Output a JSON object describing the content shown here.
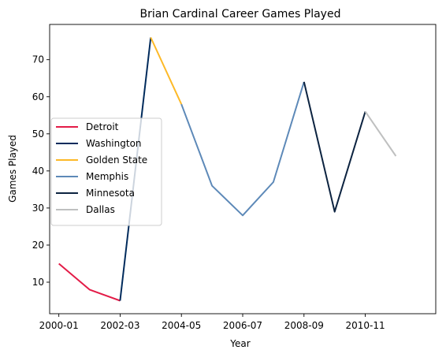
{
  "chart_data": {
    "type": "line",
    "title": "Brian Cardinal Career Games Played",
    "xlabel": "Year",
    "ylabel": "Games Played",
    "xlim": [
      -0.3,
      12.3
    ],
    "ylim": [
      1.5,
      79.5
    ],
    "x_ticks": [
      {
        "pos": 0,
        "label": "2000-01"
      },
      {
        "pos": 2,
        "label": "2002-03"
      },
      {
        "pos": 4,
        "label": "2004-05"
      },
      {
        "pos": 6,
        "label": "2006-07"
      },
      {
        "pos": 8,
        "label": "2008-09"
      },
      {
        "pos": 10,
        "label": "2010-11"
      }
    ],
    "y_ticks": [
      10,
      20,
      30,
      40,
      50,
      60,
      70
    ],
    "legend_position": "center-left",
    "series": [
      {
        "name": "Detroit",
        "color": "#e31b47",
        "x": [
          0,
          1,
          2
        ],
        "y": [
          15,
          8,
          5
        ]
      },
      {
        "name": "Washington",
        "color": "#002b5c",
        "x": [
          2,
          3
        ],
        "y": [
          5,
          76
        ]
      },
      {
        "name": "Golden State",
        "color": "#fdb927",
        "x": [
          3,
          4
        ],
        "y": [
          76,
          58
        ]
      },
      {
        "name": "Memphis",
        "color": "#5d89b8",
        "x": [
          4,
          5,
          6,
          7,
          8
        ],
        "y": [
          58,
          36,
          28,
          37,
          64
        ]
      },
      {
        "name": "Minnesota",
        "color": "#0c2340",
        "x": [
          8,
          9,
          10
        ],
        "y": [
          64,
          29,
          56
        ]
      },
      {
        "name": "Dallas",
        "color": "#bfc0c0",
        "x": [
          10,
          11
        ],
        "y": [
          56,
          44
        ]
      }
    ]
  }
}
